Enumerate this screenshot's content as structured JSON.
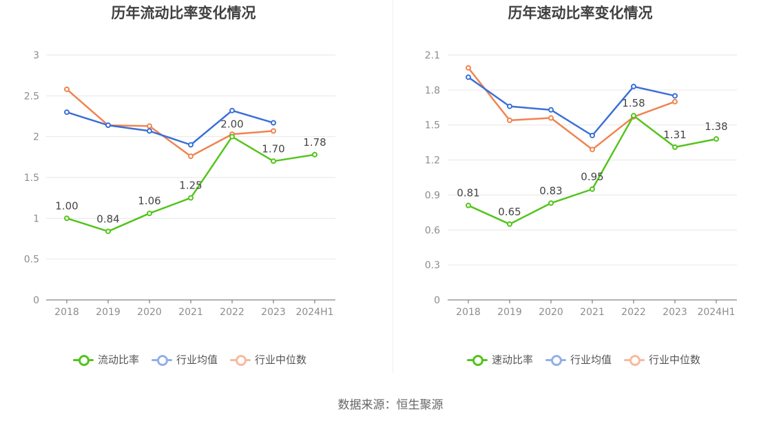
{
  "footer": {
    "source": "数据来源：恒生聚源"
  },
  "chart_data": [
    {
      "type": "line",
      "title": "历年流动比率变化情况",
      "xlabel": "",
      "ylabel": "",
      "categories": [
        "2018",
        "2019",
        "2020",
        "2021",
        "2022",
        "2023",
        "2024H1"
      ],
      "ylim": [
        0,
        3
      ],
      "yticks": [
        0,
        0.5,
        1,
        1.5,
        2,
        2.5,
        3
      ],
      "ytick_labels": [
        "0",
        "0.5",
        "1",
        "1.5",
        "2",
        "2.5",
        "3"
      ],
      "grid": true,
      "legend_position": "bottom-center",
      "series": [
        {
          "name": "流动比率",
          "color": "#52c41a",
          "values": [
            1.0,
            0.84,
            1.06,
            1.25,
            2.0,
            1.7,
            1.78
          ],
          "labels": [
            "1.00",
            "0.84",
            "1.06",
            "1.25",
            "2.00",
            "1.70",
            "1.78"
          ]
        },
        {
          "name": "行业均值",
          "color": "#3a6fd8",
          "values": [
            2.3,
            2.14,
            2.07,
            1.9,
            2.32,
            2.17,
            null
          ]
        },
        {
          "name": "行业中位数",
          "color": "#f0834f",
          "values": [
            2.58,
            2.14,
            2.13,
            1.76,
            2.03,
            2.07,
            null
          ]
        }
      ]
    },
    {
      "type": "line",
      "title": "历年速动比率变化情况",
      "xlabel": "",
      "ylabel": "",
      "categories": [
        "2018",
        "2019",
        "2020",
        "2021",
        "2022",
        "2023",
        "2024H1"
      ],
      "ylim": [
        0,
        2.1
      ],
      "yticks": [
        0,
        0.3,
        0.6,
        0.9,
        1.2,
        1.5,
        1.8,
        2.1
      ],
      "ytick_labels": [
        "0",
        "0.3",
        "0.6",
        "0.9",
        "1.2",
        "1.5",
        "1.8",
        "2.1"
      ],
      "grid": true,
      "legend_position": "bottom-center",
      "series": [
        {
          "name": "速动比率",
          "color": "#52c41a",
          "values": [
            0.81,
            0.65,
            0.83,
            0.95,
            1.58,
            1.31,
            1.38
          ],
          "labels": [
            "0.81",
            "0.65",
            "0.83",
            "0.95",
            "1.58",
            "1.31",
            "1.38"
          ]
        },
        {
          "name": "行业均值",
          "color": "#3a6fd8",
          "values": [
            1.91,
            1.66,
            1.63,
            1.41,
            1.83,
            1.75,
            null
          ]
        },
        {
          "name": "行业中位数",
          "color": "#f0834f",
          "values": [
            1.99,
            1.54,
            1.56,
            1.29,
            1.57,
            1.7,
            null
          ]
        }
      ]
    }
  ]
}
